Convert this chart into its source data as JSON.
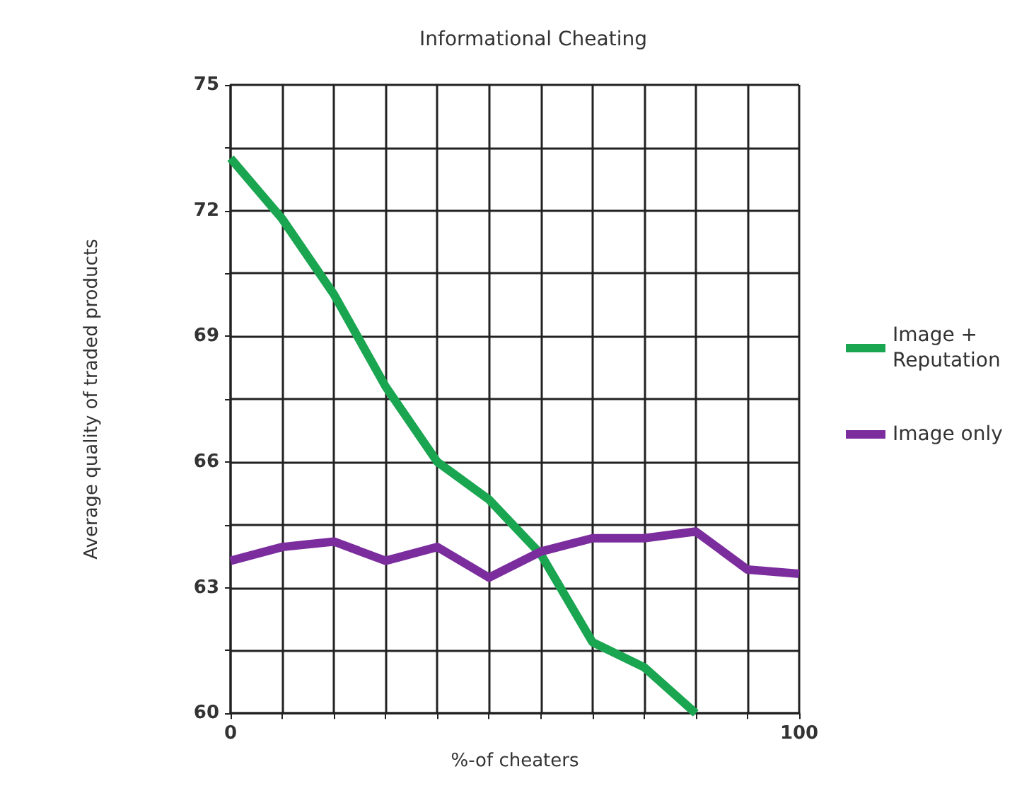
{
  "chart_data": {
    "type": "line",
    "title": "Informational Cheating",
    "xlabel": "%-of cheaters",
    "ylabel": "Average quality of traded products",
    "x": [
      0,
      9.09,
      18.18,
      27.27,
      36.36,
      45.45,
      54.55,
      63.64,
      72.73,
      81.82,
      90.91,
      100
    ],
    "series": [
      {
        "name": "Image + Reputation",
        "color": "#1aa550",
        "values": [
          73.25,
          71.8,
          70.0,
          67.8,
          66.0,
          65.1,
          63.8,
          61.7,
          61.1,
          60.0,
          null,
          null
        ]
      },
      {
        "name": "Image only",
        "color": "#7b2d9e",
        "values": [
          63.64,
          63.97,
          64.1,
          63.64,
          63.97,
          63.24,
          63.86,
          64.18,
          64.18,
          64.34,
          63.43,
          63.33
        ]
      }
    ],
    "xlim": [
      0,
      100
    ],
    "xticks": [
      0,
      {
        "value": 9.09,
        "label": null
      },
      {
        "value": 18.18,
        "label": null
      },
      {
        "value": 27.27,
        "label": null
      },
      {
        "value": 36.36,
        "label": null
      },
      {
        "value": 45.45,
        "label": null
      },
      {
        "value": 54.55,
        "label": null
      },
      {
        "value": 63.64,
        "label": null
      },
      {
        "value": 72.73,
        "label": null
      },
      {
        "value": 81.82,
        "label": null
      },
      {
        "value": 90.91,
        "label": null
      },
      100
    ],
    "ylim": [
      60,
      75
    ],
    "yticks": [
      60,
      {
        "value": 61.5,
        "label": null
      },
      63,
      {
        "value": 64.5,
        "label": null
      },
      66,
      {
        "value": 67.5,
        "label": null
      },
      69,
      {
        "value": 70.5,
        "label": null
      },
      72,
      {
        "value": 73.5,
        "label": null
      },
      75
    ],
    "grid": true,
    "legend": "right",
    "marker": "none",
    "line_style": "solid"
  }
}
